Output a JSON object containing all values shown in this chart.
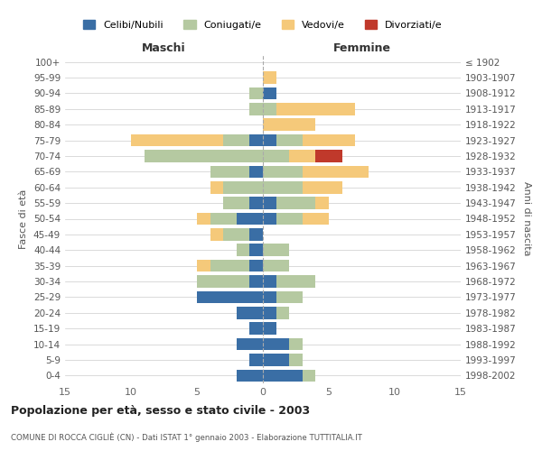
{
  "age_groups": [
    "0-4",
    "5-9",
    "10-14",
    "15-19",
    "20-24",
    "25-29",
    "30-34",
    "35-39",
    "40-44",
    "45-49",
    "50-54",
    "55-59",
    "60-64",
    "65-69",
    "70-74",
    "75-79",
    "80-84",
    "85-89",
    "90-94",
    "95-99",
    "100+"
  ],
  "birth_years": [
    "1998-2002",
    "1993-1997",
    "1988-1992",
    "1983-1987",
    "1978-1982",
    "1973-1977",
    "1968-1972",
    "1963-1967",
    "1958-1962",
    "1953-1957",
    "1948-1952",
    "1943-1947",
    "1938-1942",
    "1933-1937",
    "1928-1932",
    "1923-1927",
    "1918-1922",
    "1913-1917",
    "1908-1912",
    "1903-1907",
    "≤ 1902"
  ],
  "maschi": {
    "celibi": [
      2,
      1,
      2,
      1,
      2,
      5,
      1,
      1,
      1,
      1,
      2,
      1,
      0,
      1,
      0,
      1,
      0,
      0,
      0,
      0,
      0
    ],
    "coniugati": [
      0,
      0,
      0,
      0,
      0,
      0,
      4,
      3,
      1,
      2,
      2,
      2,
      3,
      3,
      9,
      2,
      0,
      1,
      1,
      0,
      0
    ],
    "vedovi": [
      0,
      0,
      0,
      0,
      0,
      0,
      0,
      1,
      0,
      1,
      1,
      0,
      1,
      0,
      0,
      7,
      0,
      0,
      0,
      0,
      0
    ],
    "divorziati": [
      0,
      0,
      0,
      0,
      0,
      0,
      0,
      0,
      0,
      0,
      0,
      0,
      0,
      0,
      0,
      0,
      0,
      0,
      0,
      0,
      0
    ]
  },
  "femmine": {
    "nubili": [
      3,
      2,
      2,
      1,
      1,
      1,
      1,
      0,
      0,
      0,
      1,
      1,
      0,
      0,
      0,
      1,
      0,
      0,
      1,
      0,
      0
    ],
    "coniugate": [
      1,
      1,
      1,
      0,
      1,
      2,
      3,
      2,
      2,
      0,
      2,
      3,
      3,
      3,
      2,
      2,
      0,
      1,
      0,
      0,
      0
    ],
    "vedove": [
      0,
      0,
      0,
      0,
      0,
      0,
      0,
      0,
      0,
      0,
      2,
      1,
      3,
      5,
      2,
      4,
      4,
      6,
      0,
      1,
      0
    ],
    "divorziate": [
      0,
      0,
      0,
      0,
      0,
      0,
      0,
      0,
      0,
      0,
      0,
      0,
      0,
      0,
      2,
      0,
      0,
      0,
      0,
      0,
      0
    ]
  },
  "colors": {
    "celibi": "#3a6ea5",
    "coniugati": "#b5c9a1",
    "vedovi": "#f5c97a",
    "divorziati": "#c0392b"
  },
  "xlim": 15,
  "title": "Popolazione per età, sesso e stato civile - 2003",
  "subtitle": "COMUNE DI ROCCA CIGLIÈ (CN) - Dati ISTAT 1° gennaio 2003 - Elaborazione TUTTITALIA.IT",
  "ylabel_left": "Fasce di età",
  "ylabel_right": "Anni di nascita",
  "legend_labels": [
    "Celibi/Nubili",
    "Coniugati/e",
    "Vedovi/e",
    "Divorziati/e"
  ],
  "maschi_label": "Maschi",
  "femmine_label": "Femmine"
}
